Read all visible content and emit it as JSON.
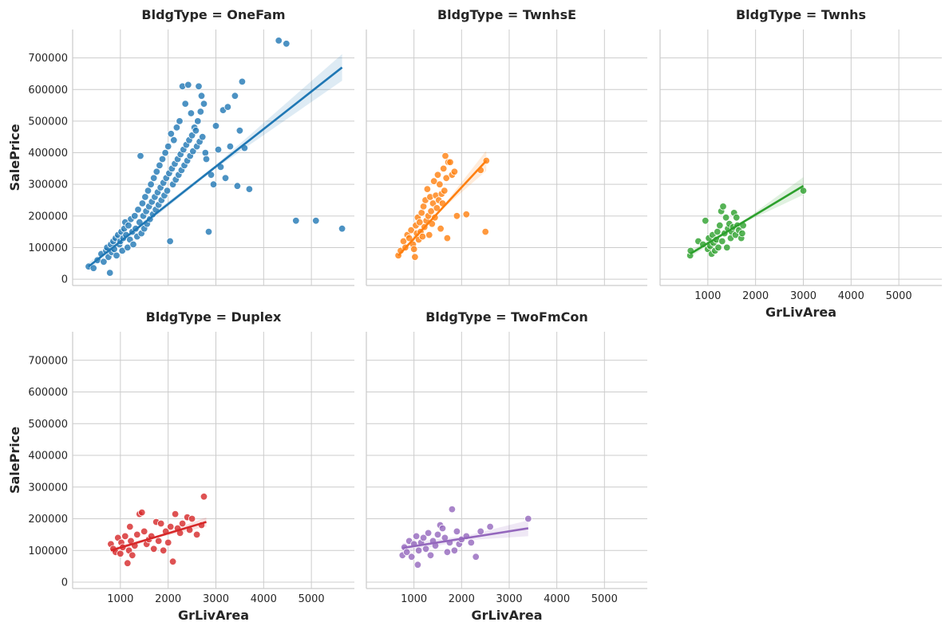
{
  "chart_data": {
    "type": "scatter",
    "x_var": "GrLivArea",
    "y_var": "SalePrice",
    "facet_label_prefix": "BldgType = ",
    "xlim": [
      0,
      5900
    ],
    "ylim": [
      -20000,
      790000
    ],
    "xticks": [
      1000,
      2000,
      3000,
      4000,
      5000
    ],
    "yticks": [
      0,
      100000,
      200000,
      300000,
      400000,
      500000,
      600000,
      700000
    ],
    "grid": true,
    "panels": [
      {
        "title": "BldgType = OneFam",
        "category": "OneFam",
        "color": "#1f77b4",
        "regression": {
          "x0": 334,
          "y0": 40000,
          "x1": 5642,
          "y1": 670000
        },
        "ci_halfwidth_ends": [
          12000,
          42000
        ],
        "points": [
          [
            334,
            40000
          ],
          [
            438,
            35000
          ],
          [
            520,
            60000
          ],
          [
            600,
            80000
          ],
          [
            650,
            55000
          ],
          [
            700,
            90000
          ],
          [
            720,
            100000
          ],
          [
            750,
            70000
          ],
          [
            780,
            20000
          ],
          [
            800,
            110000
          ],
          [
            820,
            85000
          ],
          [
            850,
            120000
          ],
          [
            870,
            95000
          ],
          [
            900,
            130000
          ],
          [
            920,
            75000
          ],
          [
            950,
            140000
          ],
          [
            980,
            110000
          ],
          [
            1000,
            120000
          ],
          [
            1020,
            150000
          ],
          [
            1040,
            90000
          ],
          [
            1060,
            130000
          ],
          [
            1080,
            160000
          ],
          [
            1100,
            180000
          ],
          [
            1120,
            140000
          ],
          [
            1150,
            100000
          ],
          [
            1170,
            170000
          ],
          [
            1200,
            125000
          ],
          [
            1220,
            190000
          ],
          [
            1250,
            150000
          ],
          [
            1270,
            110000
          ],
          [
            1300,
            200000
          ],
          [
            1320,
            160000
          ],
          [
            1350,
            135000
          ],
          [
            1370,
            220000
          ],
          [
            1400,
            180000
          ],
          [
            1420,
            390000
          ],
          [
            1440,
            145000
          ],
          [
            1460,
            240000
          ],
          [
            1480,
            200000
          ],
          [
            1500,
            160000
          ],
          [
            1520,
            260000
          ],
          [
            1540,
            215000
          ],
          [
            1560,
            175000
          ],
          [
            1580,
            280000
          ],
          [
            1600,
            230000
          ],
          [
            1620,
            190000
          ],
          [
            1640,
            300000
          ],
          [
            1660,
            245000
          ],
          [
            1680,
            205000
          ],
          [
            1700,
            320000
          ],
          [
            1720,
            260000
          ],
          [
            1740,
            220000
          ],
          [
            1760,
            340000
          ],
          [
            1780,
            275000
          ],
          [
            1800,
            235000
          ],
          [
            1820,
            360000
          ],
          [
            1840,
            290000
          ],
          [
            1860,
            250000
          ],
          [
            1880,
            380000
          ],
          [
            1900,
            305000
          ],
          [
            1920,
            265000
          ],
          [
            1940,
            400000
          ],
          [
            1960,
            320000
          ],
          [
            1980,
            280000
          ],
          [
            2000,
            420000
          ],
          [
            2020,
            335000
          ],
          [
            2040,
            120000
          ],
          [
            2060,
            460000
          ],
          [
            2080,
            350000
          ],
          [
            2100,
            300000
          ],
          [
            2120,
            440000
          ],
          [
            2140,
            365000
          ],
          [
            2160,
            315000
          ],
          [
            2180,
            480000
          ],
          [
            2200,
            380000
          ],
          [
            2220,
            330000
          ],
          [
            2240,
            500000
          ],
          [
            2260,
            395000
          ],
          [
            2280,
            345000
          ],
          [
            2300,
            610000
          ],
          [
            2320,
            410000
          ],
          [
            2340,
            360000
          ],
          [
            2360,
            555000
          ],
          [
            2380,
            425000
          ],
          [
            2400,
            375000
          ],
          [
            2420,
            615000
          ],
          [
            2440,
            440000
          ],
          [
            2460,
            390000
          ],
          [
            2480,
            525000
          ],
          [
            2500,
            455000
          ],
          [
            2520,
            405000
          ],
          [
            2550,
            480000
          ],
          [
            2580,
            470000
          ],
          [
            2600,
            420000
          ],
          [
            2620,
            500000
          ],
          [
            2640,
            610000
          ],
          [
            2660,
            435000
          ],
          [
            2680,
            530000
          ],
          [
            2700,
            580000
          ],
          [
            2720,
            450000
          ],
          [
            2750,
            555000
          ],
          [
            2780,
            400000
          ],
          [
            2800,
            380000
          ],
          [
            2850,
            150000
          ],
          [
            2900,
            330000
          ],
          [
            2950,
            300000
          ],
          [
            3000,
            485000
          ],
          [
            3050,
            410000
          ],
          [
            3100,
            355000
          ],
          [
            3150,
            535000
          ],
          [
            3200,
            320000
          ],
          [
            3250,
            545000
          ],
          [
            3300,
            420000
          ],
          [
            3400,
            580000
          ],
          [
            3450,
            295000
          ],
          [
            3500,
            470000
          ],
          [
            3550,
            625000
          ],
          [
            3600,
            415000
          ],
          [
            3700,
            285000
          ],
          [
            4316,
            755000
          ],
          [
            4476,
            745000
          ],
          [
            4676,
            185000
          ],
          [
            5095,
            185000
          ],
          [
            5642,
            160000
          ]
        ]
      },
      {
        "title": "BldgType = TwnhsE",
        "category": "TwnhsE",
        "color": "#ff7f0e",
        "regression": {
          "x0": 672,
          "y0": 75000,
          "x1": 2520,
          "y1": 375000
        },
        "ci_halfwidth_ends": [
          8000,
          32000
        ],
        "points": [
          [
            672,
            75000
          ],
          [
            720,
            90000
          ],
          [
            780,
            120000
          ],
          [
            820,
            100000
          ],
          [
            860,
            140000
          ],
          [
            900,
            130000
          ],
          [
            940,
            155000
          ],
          [
            980,
            110000
          ],
          [
            1000,
            95000
          ],
          [
            1020,
            70000
          ],
          [
            1040,
            170000
          ],
          [
            1060,
            145000
          ],
          [
            1080,
            195000
          ],
          [
            1100,
            125000
          ],
          [
            1120,
            180000
          ],
          [
            1140,
            150000
          ],
          [
            1160,
            210000
          ],
          [
            1180,
            135000
          ],
          [
            1200,
            230000
          ],
          [
            1220,
            165000
          ],
          [
            1240,
            250000
          ],
          [
            1260,
            185000
          ],
          [
            1280,
            285000
          ],
          [
            1300,
            200000
          ],
          [
            1320,
            140000
          ],
          [
            1340,
            260000
          ],
          [
            1360,
            215000
          ],
          [
            1380,
            175000
          ],
          [
            1400,
            240000
          ],
          [
            1420,
            310000
          ],
          [
            1440,
            195000
          ],
          [
            1460,
            265000
          ],
          [
            1480,
            225000
          ],
          [
            1500,
            330000
          ],
          [
            1520,
            250000
          ],
          [
            1540,
            300000
          ],
          [
            1560,
            160000
          ],
          [
            1580,
            270000
          ],
          [
            1600,
            240000
          ],
          [
            1620,
            350000
          ],
          [
            1640,
            280000
          ],
          [
            1660,
            390000
          ],
          [
            1680,
            320000
          ],
          [
            1700,
            130000
          ],
          [
            1720,
            370000
          ],
          [
            1760,
            370000
          ],
          [
            1800,
            330000
          ],
          [
            1850,
            340000
          ],
          [
            1900,
            200000
          ],
          [
            2100,
            205000
          ],
          [
            2400,
            345000
          ],
          [
            2520,
            375000
          ],
          [
            2500,
            150000
          ]
        ]
      },
      {
        "title": "BldgType = Twnhs",
        "category": "Twnhs",
        "color": "#2ca02c",
        "regression": {
          "x0": 630,
          "y0": 80000,
          "x1": 3000,
          "y1": 295000
        },
        "ci_halfwidth_ends": [
          10000,
          28000
        ],
        "points": [
          [
            630,
            75000
          ],
          [
            640,
            90000
          ],
          [
            800,
            120000
          ],
          [
            900,
            110000
          ],
          [
            950,
            185000
          ],
          [
            1000,
            95000
          ],
          [
            1020,
            130000
          ],
          [
            1050,
            105000
          ],
          [
            1080,
            80000
          ],
          [
            1100,
            140000
          ],
          [
            1120,
            115000
          ],
          [
            1150,
            90000
          ],
          [
            1180,
            125000
          ],
          [
            1200,
            150000
          ],
          [
            1220,
            100000
          ],
          [
            1250,
            170000
          ],
          [
            1280,
            215000
          ],
          [
            1300,
            120000
          ],
          [
            1320,
            230000
          ],
          [
            1350,
            145000
          ],
          [
            1380,
            195000
          ],
          [
            1400,
            100000
          ],
          [
            1420,
            160000
          ],
          [
            1450,
            175000
          ],
          [
            1480,
            130000
          ],
          [
            1500,
            150000
          ],
          [
            1530,
            165000
          ],
          [
            1550,
            210000
          ],
          [
            1580,
            140000
          ],
          [
            1600,
            195000
          ],
          [
            1620,
            170000
          ],
          [
            1650,
            155000
          ],
          [
            1700,
            130000
          ],
          [
            1720,
            145000
          ],
          [
            1740,
            170000
          ],
          [
            3000,
            280000
          ]
        ]
      },
      {
        "title": "BldgType = Duplex",
        "category": "Duplex",
        "color": "#d62728",
        "regression": {
          "x0": 800,
          "y0": 100000,
          "x1": 2800,
          "y1": 190000
        },
        "ci_halfwidth_ends": [
          8000,
          15000
        ],
        "points": [
          [
            800,
            120000
          ],
          [
            850,
            105000
          ],
          [
            900,
            95000
          ],
          [
            950,
            140000
          ],
          [
            1000,
            90000
          ],
          [
            1020,
            125000
          ],
          [
            1050,
            110000
          ],
          [
            1100,
            145000
          ],
          [
            1150,
            60000
          ],
          [
            1180,
            100000
          ],
          [
            1200,
            175000
          ],
          [
            1220,
            130000
          ],
          [
            1250,
            85000
          ],
          [
            1300,
            115000
          ],
          [
            1350,
            150000
          ],
          [
            1400,
            215000
          ],
          [
            1450,
            220000
          ],
          [
            1500,
            160000
          ],
          [
            1550,
            120000
          ],
          [
            1600,
            135000
          ],
          [
            1650,
            145000
          ],
          [
            1700,
            105000
          ],
          [
            1750,
            190000
          ],
          [
            1800,
            130000
          ],
          [
            1850,
            185000
          ],
          [
            1900,
            100000
          ],
          [
            1950,
            160000
          ],
          [
            2000,
            125000
          ],
          [
            2050,
            175000
          ],
          [
            2100,
            65000
          ],
          [
            2150,
            215000
          ],
          [
            2200,
            170000
          ],
          [
            2250,
            155000
          ],
          [
            2300,
            185000
          ],
          [
            2400,
            205000
          ],
          [
            2450,
            165000
          ],
          [
            2500,
            200000
          ],
          [
            2600,
            150000
          ],
          [
            2700,
            180000
          ],
          [
            2750,
            270000
          ]
        ]
      },
      {
        "title": "BldgType = TwoFmCon",
        "category": "TwoFmCon",
        "color": "#9467bd",
        "regression": {
          "x0": 760,
          "y0": 108000,
          "x1": 3400,
          "y1": 170000
        },
        "ci_halfwidth_ends": [
          15000,
          25000
        ],
        "points": [
          [
            760,
            85000
          ],
          [
            800,
            110000
          ],
          [
            850,
            95000
          ],
          [
            900,
            130000
          ],
          [
            950,
            80000
          ],
          [
            1000,
            120000
          ],
          [
            1050,
            145000
          ],
          [
            1080,
            55000
          ],
          [
            1100,
            100000
          ],
          [
            1150,
            125000
          ],
          [
            1200,
            140000
          ],
          [
            1250,
            105000
          ],
          [
            1300,
            155000
          ],
          [
            1350,
            85000
          ],
          [
            1400,
            130000
          ],
          [
            1450,
            115000
          ],
          [
            1500,
            150000
          ],
          [
            1550,
            180000
          ],
          [
            1600,
            170000
          ],
          [
            1650,
            140000
          ],
          [
            1700,
            95000
          ],
          [
            1750,
            125000
          ],
          [
            1800,
            230000
          ],
          [
            1850,
            100000
          ],
          [
            1900,
            160000
          ],
          [
            1950,
            120000
          ],
          [
            2000,
            135000
          ],
          [
            2100,
            145000
          ],
          [
            2200,
            125000
          ],
          [
            2300,
            80000
          ],
          [
            2400,
            160000
          ],
          [
            2600,
            175000
          ],
          [
            3400,
            200000
          ]
        ]
      }
    ]
  }
}
